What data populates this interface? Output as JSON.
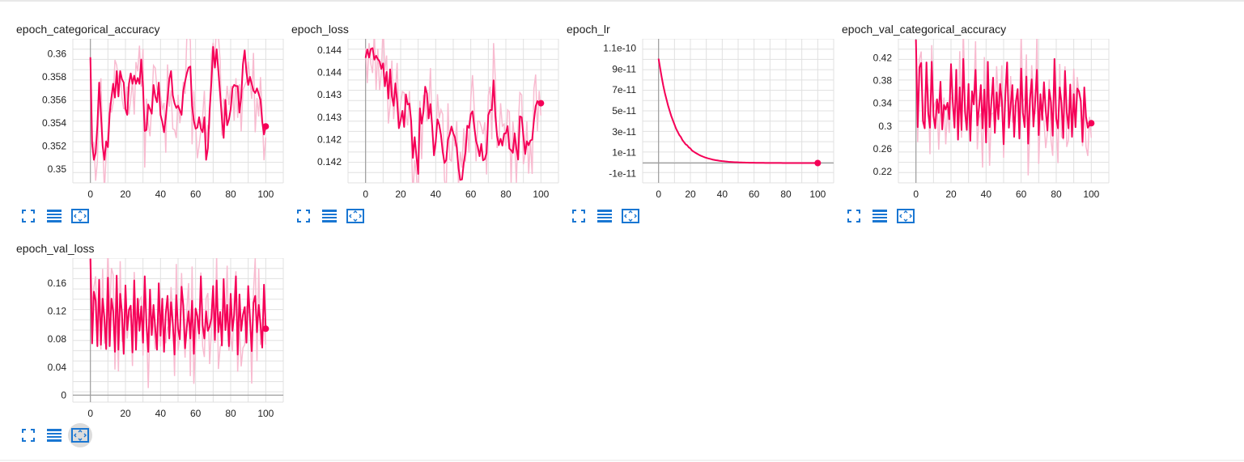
{
  "theme": {
    "accent": "#f50057",
    "smoothed": "#f50057",
    "raw": "#f8bbd0",
    "grid": "#e0e0e0",
    "axis": "#9e9e9e",
    "icon": "#1976d2",
    "active_bg": "#dcdcdc"
  },
  "icons": {
    "fullscreen": "fullscreen-icon",
    "data_table": "data-table-icon",
    "fit_domain": "fit-domain-icon"
  },
  "charts": [
    {
      "title": "epoch_categorical_accuracy"
    },
    {
      "title": "epoch_loss"
    },
    {
      "title": "epoch_lr"
    },
    {
      "title": "epoch_val_categorical_accuracy"
    },
    {
      "title": "epoch_val_loss"
    }
  ],
  "chart_data": [
    {
      "type": "line",
      "title": "epoch_categorical_accuracy",
      "x_ticks": [
        "0",
        "20",
        "40",
        "60",
        "80",
        "100"
      ],
      "y_ticks": [
        "0.35",
        "0.352",
        "0.354",
        "0.356",
        "0.358",
        "0.36"
      ],
      "xlim": [
        -10,
        110
      ],
      "ylim": [
        0.3488,
        0.3613
      ],
      "grid": true,
      "series": [
        {
          "values": [
            0.3597,
            0.3522,
            0.3508,
            0.3514,
            0.3538,
            0.3575,
            0.3548,
            0.352,
            0.3508,
            0.3524,
            0.3519,
            0.3548,
            0.3562,
            0.3574,
            0.3562,
            0.3585,
            0.3563,
            0.3585,
            0.3578,
            0.3575,
            0.3552,
            0.3547,
            0.3574,
            0.3583,
            0.3574,
            0.3581,
            0.3574,
            0.3579,
            0.3574,
            0.3595,
            0.3571,
            0.3533,
            0.3534,
            0.3556,
            0.3552,
            0.3548,
            0.3573,
            0.3563,
            0.3558,
            0.3575,
            0.3547,
            0.3541,
            0.3532,
            0.3545,
            0.3561,
            0.3578,
            0.3585,
            0.3564,
            0.3557,
            0.3553,
            0.3555,
            0.3551,
            0.3547,
            0.3568,
            0.3576,
            0.3583,
            0.3588,
            0.3589,
            0.3555,
            0.3542,
            0.3535,
            0.3536,
            0.3545,
            0.3535,
            0.3532,
            0.3545,
            0.3508,
            0.3518,
            0.3551,
            0.3575,
            0.3606,
            0.3588,
            0.3604,
            0.3585,
            0.3565,
            0.3544,
            0.3527,
            0.356,
            0.3538,
            0.3543,
            0.3552,
            0.357,
            0.3573,
            0.3572,
            0.3572,
            0.3549,
            0.3562,
            0.3591,
            0.3603,
            0.3584,
            0.3573,
            0.358,
            0.3574,
            0.3568,
            0.3566,
            0.357,
            0.3565,
            0.356,
            0.3541,
            0.353,
            0.3537
          ]
        }
      ]
    },
    {
      "type": "line",
      "title": "epoch_loss",
      "x_ticks": [
        "0",
        "20",
        "40",
        "60",
        "80",
        "100"
      ],
      "y_ticks": [
        "0.142",
        "0.142",
        "0.143",
        "0.143",
        "0.144",
        "0.144"
      ],
      "xlim": [
        -10,
        110
      ],
      "ylim": [
        0.1413,
        0.1447
      ],
      "grid": true,
      "series": [
        {
          "values": [
            0.14425,
            0.14445,
            0.14426,
            0.14446,
            0.14448,
            0.14421,
            0.1443,
            0.14422,
            0.14417,
            0.14399,
            0.14412,
            0.14358,
            0.14392,
            0.14329,
            0.14398,
            0.14335,
            0.14312,
            0.14365,
            0.14323,
            0.14259,
            0.14278,
            0.143,
            0.14262,
            0.14339,
            0.14315,
            0.14317,
            0.14276,
            0.14189,
            0.14238,
            0.14193,
            0.14151,
            0.14306,
            0.1427,
            0.14298,
            0.14357,
            0.14341,
            0.14282,
            0.14316,
            0.14263,
            0.14195,
            0.14227,
            0.1428,
            0.14267,
            0.14243,
            0.14203,
            0.14177,
            0.14184,
            0.14232,
            0.14245,
            0.14263,
            0.14247,
            0.14237,
            0.14213,
            0.14165,
            0.14137,
            0.14138,
            0.14177,
            0.14204,
            0.14265,
            0.1426,
            0.14292,
            0.14299,
            0.14262,
            0.14229,
            0.14215,
            0.14193,
            0.14222,
            0.14183,
            0.14186,
            0.14201,
            0.1429,
            0.14302,
            0.14302,
            0.14372,
            0.14289,
            0.14241,
            0.14219,
            0.14234,
            0.14218,
            0.14246,
            0.14247,
            0.14264,
            0.14211,
            0.14207,
            0.14201,
            0.14247,
            0.14211,
            0.14185,
            0.14287,
            0.14285,
            0.14242,
            0.14198,
            0.14228,
            0.14219,
            0.1423,
            0.14232,
            0.14277,
            0.14311,
            0.14323,
            0.14319,
            0.14318
          ]
        }
      ]
    },
    {
      "type": "line",
      "title": "epoch_lr",
      "x_ticks": [
        "0",
        "20",
        "40",
        "60",
        "80",
        "100"
      ],
      "y_ticks": [
        "-1e-11",
        "1e-11",
        "3e-11",
        "5e-11",
        "7e-11",
        "9e-11",
        "1.1e-10"
      ],
      "xlim": [
        -10,
        110
      ],
      "ylim": [
        -1.9e-11,
        1.19e-10
      ],
      "grid": true,
      "series": [
        {
          "values": [
            1e-10,
            9.1e-11,
            8.2e-11,
            7.4e-11,
            6.7e-11,
            6.1e-11,
            5.5e-11,
            5e-11,
            4.5e-11,
            4.1e-11,
            3.7e-11,
            3.3e-11,
            3e-11,
            2.7e-11,
            2.5e-11,
            2.2e-11,
            2e-11,
            1.8e-11,
            1.7e-11,
            1.5e-11,
            1.4e-11,
            1.2e-11,
            1.1e-11,
            1e-11,
            9.1e-12,
            8.2e-12,
            7.4e-12,
            6.7e-12,
            6.1e-12,
            5.5e-12,
            5e-12,
            4.5e-12,
            4.1e-12,
            3.7e-12,
            3.3e-12,
            3e-12,
            2.7e-12,
            2.5e-12,
            2.2e-12,
            2e-12,
            1.8e-12,
            1.7e-12,
            1.5e-12,
            1.4e-12,
            1.2e-12,
            1.1e-12,
            1e-12,
            9.1e-13,
            8.2e-13,
            7.4e-13,
            6.7e-13,
            6.1e-13,
            5.5e-13,
            5e-13,
            4.5e-13,
            4.1e-13,
            3.7e-13,
            3.3e-13,
            3e-13,
            2.7e-13,
            2.5e-13,
            2.2e-13,
            2e-13,
            1.8e-13,
            1.7e-13,
            1.5e-13,
            1.4e-13,
            1.2e-13,
            1.1e-13,
            1e-13,
            9.1e-14,
            8.2e-14,
            7.4e-14,
            6.7e-14,
            6.1e-14,
            5.5e-14,
            5e-14,
            4.5e-14,
            4.1e-14,
            3.7e-14,
            3.3e-14,
            3e-14,
            2.7e-14,
            2.5e-14,
            2.2e-14,
            2e-14,
            1.8e-14,
            1.7e-14,
            1.5e-14,
            1.4e-14,
            1.2e-14,
            1.1e-14,
            1e-14,
            9.1e-15,
            8.2e-15,
            7.4e-15,
            6.7e-15,
            6.1e-15,
            5.5e-15,
            5e-15,
            4.5e-15
          ]
        }
      ]
    },
    {
      "type": "line",
      "title": "epoch_val_categorical_accuracy",
      "x_ticks": [
        "0",
        "20",
        "40",
        "60",
        "80",
        "100"
      ],
      "y_ticks": [
        "0.22",
        "0.26",
        "0.3",
        "0.34",
        "0.38",
        "0.42"
      ],
      "xlim": [
        -10,
        110
      ],
      "ylim": [
        0.2,
        0.4534
      ],
      "grid": true,
      "series": [
        {
          "values": [
            0.452,
            0.298,
            0.403,
            0.411,
            0.309,
            0.296,
            0.412,
            0.323,
            0.297,
            0.413,
            0.318,
            0.296,
            0.347,
            0.323,
            0.378,
            0.294,
            0.337,
            0.329,
            0.341,
            0.312,
            0.409,
            0.342,
            0.297,
            0.399,
            0.276,
            0.368,
            0.293,
            0.418,
            0.324,
            0.293,
            0.374,
            0.274,
            0.361,
            0.338,
            0.399,
            0.301,
            0.333,
            0.372,
            0.296,
            0.364,
            0.271,
            0.413,
            0.298,
            0.341,
            0.385,
            0.288,
            0.359,
            0.312,
            0.374,
            0.344,
            0.268,
            0.357,
            0.412,
            0.297,
            0.336,
            0.372,
            0.281,
            0.343,
            0.365,
            0.278,
            0.401,
            0.323,
            0.298,
            0.387,
            0.269,
            0.347,
            0.382,
            0.299,
            0.343,
            0.399,
            0.284,
            0.356,
            0.311,
            0.377,
            0.328,
            0.292,
            0.364,
            0.342,
            0.283,
            0.418,
            0.313,
            0.296,
            0.368,
            0.341,
            0.279,
            0.397,
            0.325,
            0.296,
            0.373,
            0.281,
            0.356,
            0.298,
            0.366,
            0.361,
            0.344,
            0.272,
            0.368,
            0.316,
            0.297,
            0.302,
            0.305
          ]
        }
      ]
    },
    {
      "type": "line",
      "title": "epoch_val_loss",
      "x_ticks": [
        "0",
        "20",
        "40",
        "60",
        "80",
        "100"
      ],
      "y_ticks": [
        "0",
        "0.04",
        "0.08",
        "0.12",
        "0.16"
      ],
      "xlim": [
        -10,
        110
      ],
      "ylim": [
        -0.01,
        0.196
      ],
      "grid": true,
      "series": [
        {
          "values": [
            0.195,
            0.074,
            0.148,
            0.135,
            0.07,
            0.165,
            0.072,
            0.138,
            0.11,
            0.066,
            0.168,
            0.07,
            0.138,
            0.12,
            0.062,
            0.171,
            0.065,
            0.145,
            0.118,
            0.059,
            0.157,
            0.093,
            0.122,
            0.128,
            0.061,
            0.164,
            0.065,
            0.138,
            0.092,
            0.127,
            0.075,
            0.17,
            0.1,
            0.062,
            0.151,
            0.086,
            0.129,
            0.095,
            0.065,
            0.16,
            0.085,
            0.138,
            0.062,
            0.117,
            0.142,
            0.081,
            0.133,
            0.102,
            0.058,
            0.143,
            0.095,
            0.08,
            0.155,
            0.128,
            0.067,
            0.097,
            0.12,
            0.081,
            0.135,
            0.059,
            0.124,
            0.113,
            0.088,
            0.17,
            0.1,
            0.081,
            0.12,
            0.092,
            0.098,
            0.11,
            0.156,
            0.079,
            0.164,
            0.09,
            0.119,
            0.071,
            0.166,
            0.093,
            0.129,
            0.07,
            0.145,
            0.092,
            0.115,
            0.17,
            0.058,
            0.144,
            0.092,
            0.115,
            0.126,
            0.075,
            0.156,
            0.11,
            0.063,
            0.132,
            0.142,
            0.09,
            0.129,
            0.102,
            0.068,
            0.158,
            0.095
          ]
        }
      ]
    }
  ]
}
